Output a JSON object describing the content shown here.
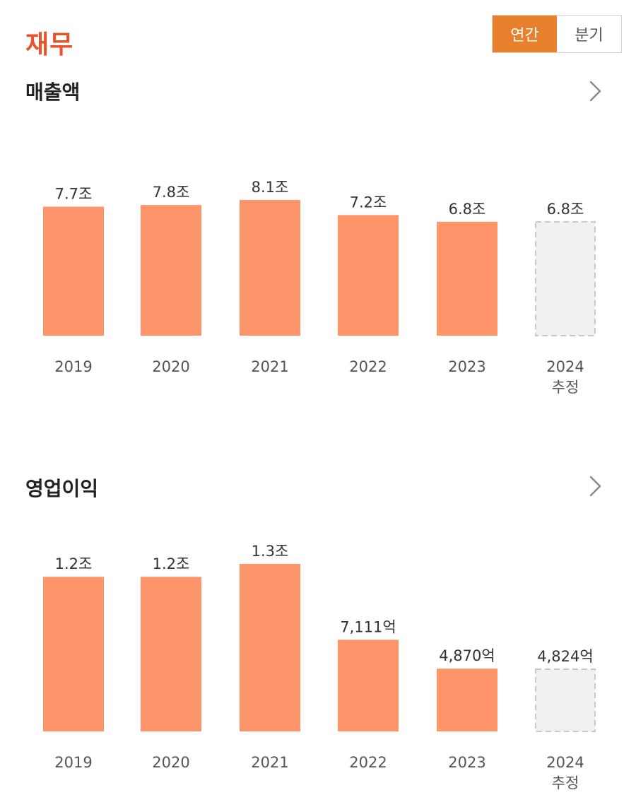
{
  "page": {
    "title": "재무"
  },
  "period_toggle": {
    "options": [
      {
        "label": "연간",
        "active": true
      },
      {
        "label": "분기",
        "active": false
      }
    ],
    "active_color": "#e8812e"
  },
  "icons": {
    "section_more": "chevron-right-icon"
  },
  "colors": {
    "bar": "#fe956a",
    "estimate_fill": "#f1f1f1",
    "estimate_border": "#c8c8c8",
    "title": "#e8532b"
  },
  "chart_data": [
    {
      "type": "bar",
      "title": "매출액",
      "categories": [
        "2019",
        "2020",
        "2021",
        "2022",
        "2023",
        "2024"
      ],
      "sublabels": [
        "",
        "",
        "",
        "",
        "",
        "추정"
      ],
      "values": [
        7.7,
        7.8,
        8.1,
        7.2,
        6.8,
        6.8
      ],
      "unit": "조원",
      "value_labels": [
        "7.7조",
        "7.8조",
        "8.1조",
        "7.2조",
        "6.8조",
        "6.8조"
      ],
      "estimated": [
        false,
        false,
        false,
        false,
        false,
        true
      ],
      "ylim": [
        0,
        8.1
      ]
    },
    {
      "type": "bar",
      "title": "영업이익",
      "categories": [
        "2019",
        "2020",
        "2021",
        "2022",
        "2023",
        "2024"
      ],
      "sublabels": [
        "",
        "",
        "",
        "",
        "",
        "추정"
      ],
      "values": [
        1.2,
        1.2,
        1.3,
        0.7111,
        0.487,
        0.4824
      ],
      "unit": "조원",
      "value_labels": [
        "1.2조",
        "1.2조",
        "1.3조",
        "7,111억",
        "4,870억",
        "4,824억"
      ],
      "estimated": [
        false,
        false,
        false,
        false,
        false,
        true
      ],
      "ylim": [
        0,
        1.3
      ]
    }
  ]
}
